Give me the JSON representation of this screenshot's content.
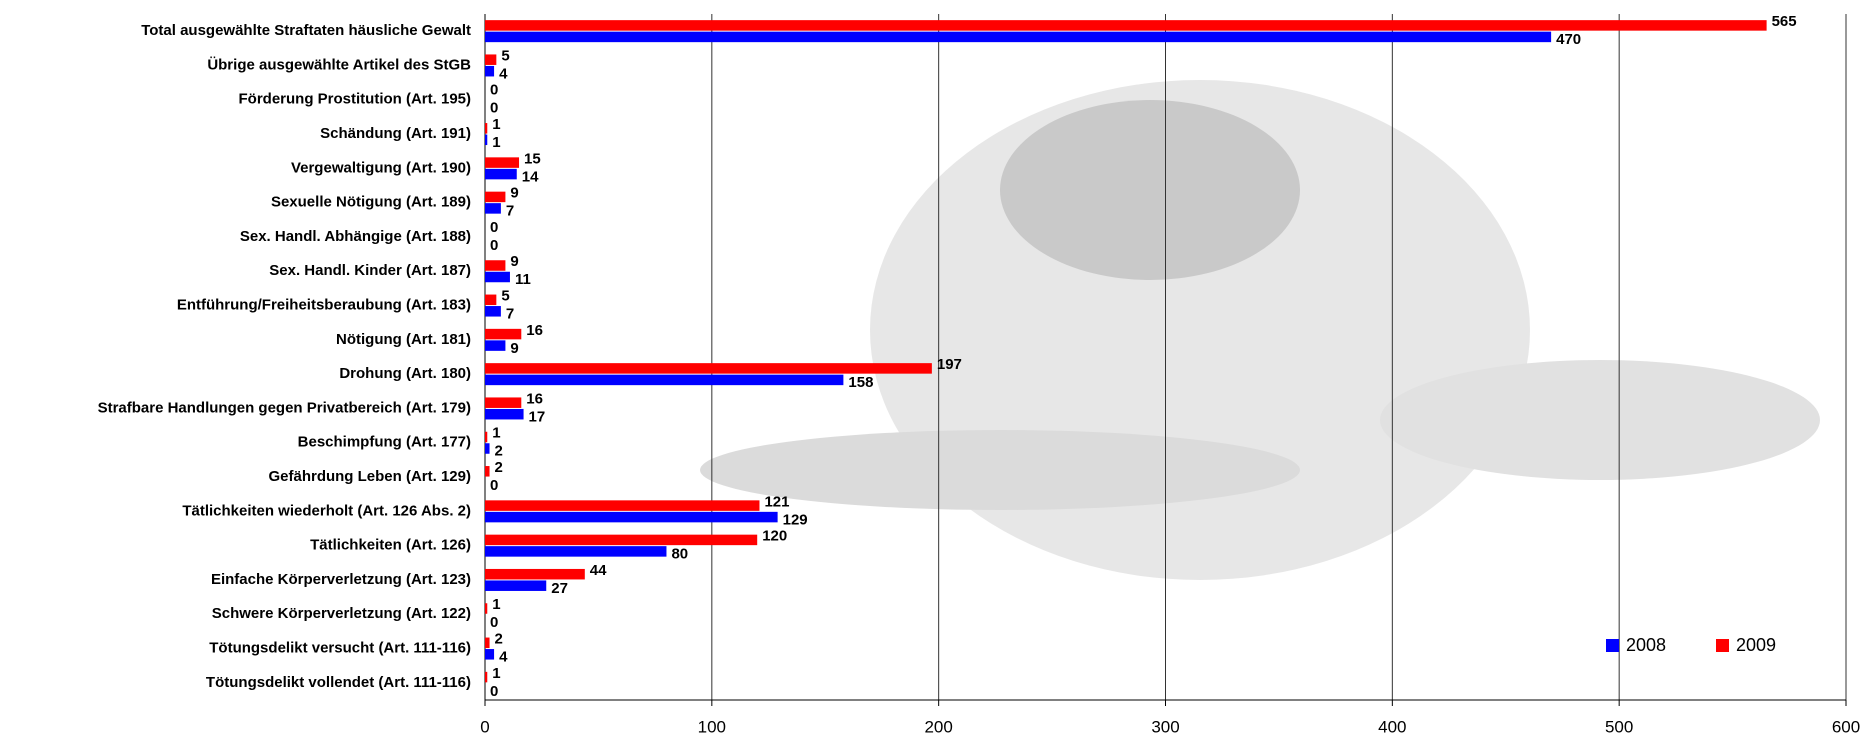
{
  "chart_data": {
    "type": "bar",
    "orientation": "horizontal",
    "categories": [
      "Total ausgewählte Straftaten häusliche Gewalt",
      "Übrige ausgewählte Artikel des StGB",
      "Förderung Prostitution (Art. 195)",
      "Schändung (Art. 191)",
      "Vergewaltigung (Art. 190)",
      "Sexuelle Nötigung (Art. 189)",
      "Sex. Handl. Abhängige (Art. 188)",
      "Sex. Handl. Kinder (Art. 187)",
      "Entführung/Freiheitsberaubung (Art. 183)",
      "Nötigung (Art. 181)",
      "Drohung (Art. 180)",
      "Strafbare Handlungen gegen Privatbereich (Art. 179)",
      "Beschimpfung (Art. 177)",
      "Gefährdung Leben (Art. 129)",
      "Tätlichkeiten wiederholt (Art. 126 Abs. 2)",
      "Tätlichkeiten (Art. 126)",
      "Einfache Körperverletzung (Art. 123)",
      "Schwere Körperverletzung (Art. 122)",
      "Tötungsdelikt versucht (Art. 111-116)",
      "Tötungsdelikt vollendet (Art. 111-116)"
    ],
    "series": [
      {
        "name": "2008",
        "color": "#0000ff",
        "values": [
          470,
          4,
          0,
          1,
          14,
          7,
          0,
          11,
          7,
          9,
          158,
          17,
          2,
          0,
          129,
          80,
          27,
          0,
          4,
          0
        ]
      },
      {
        "name": "2009",
        "color": "#ff0000",
        "values": [
          565,
          5,
          0,
          1,
          15,
          9,
          0,
          9,
          5,
          16,
          197,
          16,
          1,
          2,
          121,
          120,
          44,
          1,
          2,
          1
        ]
      }
    ],
    "xlim": [
      0,
      600
    ],
    "xticks": [
      0,
      100,
      200,
      300,
      400,
      500,
      600
    ],
    "grid": true,
    "legend": "lower right"
  }
}
